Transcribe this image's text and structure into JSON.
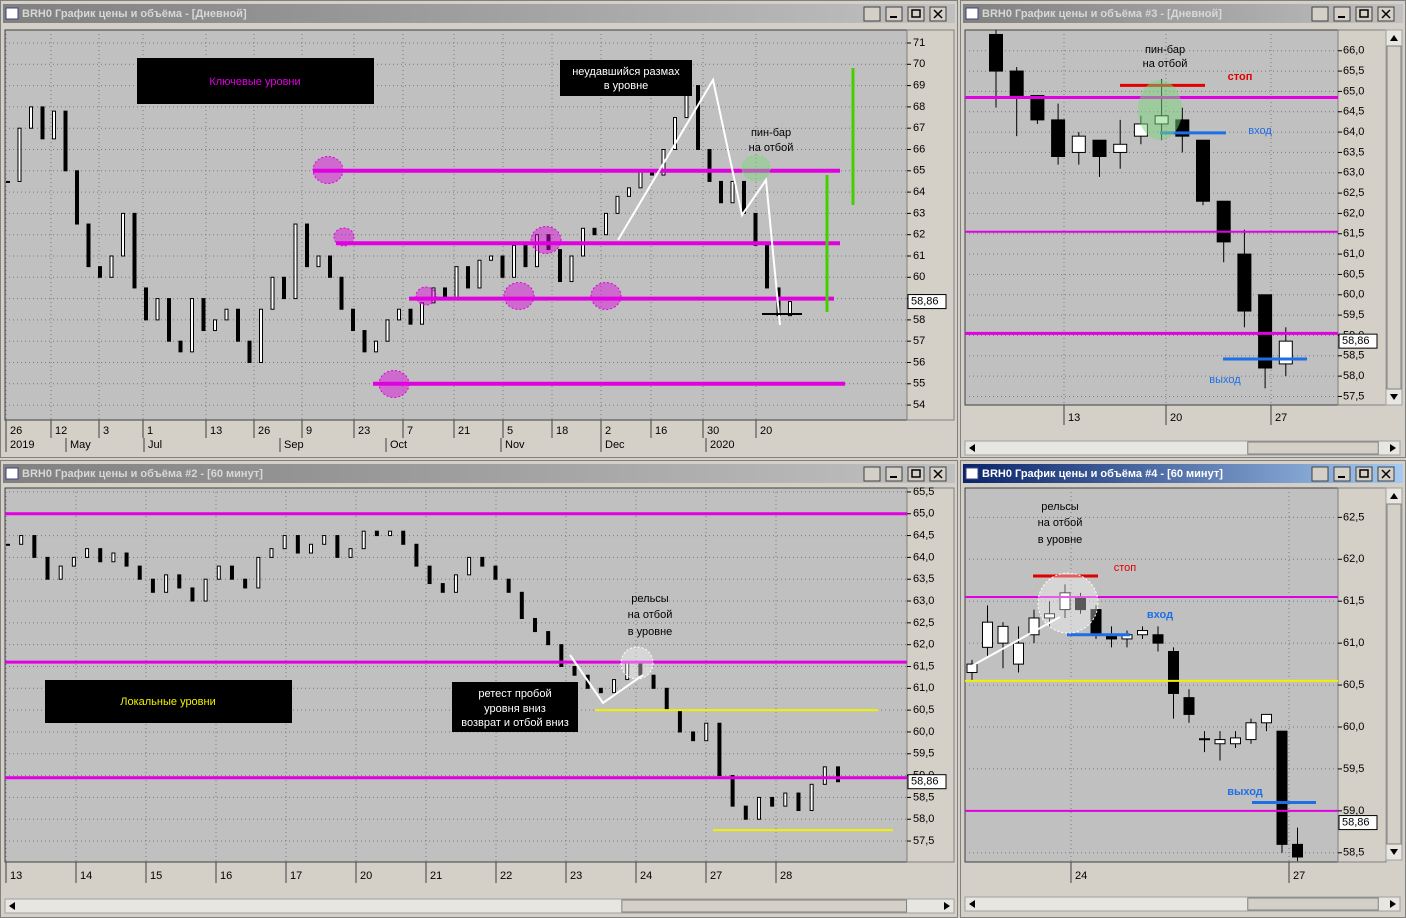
{
  "windows": [
    {
      "title": "BRH0 График цены и объёма - [Дневной]",
      "active": false,
      "chart": {
        "type": "bars",
        "closes": [
          64.5,
          67,
          68,
          66.5,
          67.8,
          65,
          62.5,
          60.5,
          60,
          61,
          63,
          59.5,
          58,
          59,
          57,
          56.5,
          59,
          57.5,
          58,
          58.5,
          57,
          56,
          58.5,
          60,
          59,
          62.5,
          60.5,
          61,
          60,
          58.5,
          57.5,
          56.5,
          57,
          58,
          58.5,
          57.8,
          58.8,
          59.5,
          59,
          60.5,
          59.5,
          60.8,
          61,
          60,
          61.5,
          60.5,
          62,
          61.3,
          59.8,
          61,
          62.3,
          62,
          63,
          63.8,
          64.2,
          65,
          64.8,
          66,
          67.5,
          69,
          66,
          64.5,
          63.5,
          64.5,
          63,
          61.5,
          59.5,
          58.2,
          58.86
        ],
        "ylim": [
          53.3,
          71.61
        ],
        "yticks": [
          71,
          70,
          69,
          68,
          67,
          66,
          65,
          64,
          63,
          62,
          61,
          60,
          59,
          58,
          57,
          56,
          55,
          54
        ],
        "price": {
          "value": 58.86,
          "label": "58,86"
        },
        "levels": [
          {
            "value": 65,
            "color": "#e000e0"
          },
          {
            "value": 61.6,
            "color": "#e000e0"
          },
          {
            "value": 59,
            "color": "#e000e0"
          },
          {
            "value": 55,
            "color": "#e000e0"
          }
        ],
        "x_labels": [
          "26",
          "12",
          "3",
          "1",
          "13",
          "26",
          "9",
          "23",
          "7",
          "21",
          "5",
          "18",
          "2",
          "16",
          "30",
          "20"
        ],
        "x_labels_2": [
          "2019",
          "May",
          "Jul",
          "Sep",
          "Oct",
          "Nov",
          "Dec",
          "2020"
        ],
        "notes": [
          {
            "lines": [
              "Ключевые уровни"
            ]
          },
          {
            "lines": [
              "неудавшийся размах",
              "в уровне"
            ]
          },
          {
            "lines": [
              "пин-бар",
              "на отбой"
            ]
          }
        ]
      }
    },
    {
      "title": "BRH0 График цены и объёма #3 - [Дневной]",
      "active": false,
      "chart": {
        "type": "candlestick",
        "candles": [
          [
            66.4,
            66.6,
            64.6,
            65.5
          ],
          [
            65.5,
            65.6,
            63.9,
            64.9
          ],
          [
            64.9,
            64.9,
            64.2,
            64.3
          ],
          [
            64.3,
            64.7,
            63.2,
            63.4
          ],
          [
            63.5,
            64.0,
            63.2,
            63.9
          ],
          [
            63.8,
            63.8,
            62.9,
            63.4
          ],
          [
            63.5,
            64.3,
            63.1,
            63.7
          ],
          [
            63.9,
            64.4,
            63.7,
            64.2
          ],
          [
            64.2,
            65.3,
            63.8,
            64.4
          ],
          [
            64.3,
            64.6,
            63.5,
            63.9
          ],
          [
            63.8,
            63.8,
            62.2,
            62.3
          ],
          [
            62.3,
            62.3,
            60.8,
            61.3
          ],
          [
            61.0,
            61.6,
            59.2,
            59.6
          ],
          [
            60.0,
            60.0,
            57.7,
            58.2
          ],
          [
            58.3,
            59.2,
            58.0,
            58.86
          ]
        ],
        "ylim": [
          57.29,
          66.51
        ],
        "yticks": [
          {
            "value": 66,
            "label": "66,0"
          },
          {
            "value": 65.5,
            "label": "65,5"
          },
          {
            "value": 65,
            "label": "65,0"
          },
          {
            "value": 64.5,
            "label": "64,5"
          },
          {
            "value": 64,
            "label": "64,0"
          },
          {
            "value": 63.5,
            "label": "63,5"
          },
          {
            "value": 63,
            "label": "63,0"
          },
          {
            "value": 62.5,
            "label": "62,5"
          },
          {
            "value": 62,
            "label": "62,0"
          },
          {
            "value": 61.5,
            "label": "61,5"
          },
          {
            "value": 61,
            "label": "61,0"
          },
          {
            "value": 60.5,
            "label": "60,5"
          },
          {
            "value": 60,
            "label": "60,0"
          },
          {
            "value": 59.5,
            "label": "59,5"
          },
          {
            "value": 59,
            "label": "59,0"
          },
          {
            "value": 58.5,
            "label": "58,5"
          },
          {
            "value": 58,
            "label": "58,0"
          },
          {
            "value": 57.5,
            "label": "57,5"
          }
        ],
        "price": {
          "value": 58.86,
          "label": "58,86"
        },
        "levels": [
          {
            "value": 64.85,
            "color": "#e000e0"
          },
          {
            "value": 61.55,
            "color": "#e000e0"
          },
          {
            "value": 59.05,
            "color": "#e000e0"
          },
          {
            "value": 65.15,
            "color": "#e00000"
          },
          {
            "value": 63.98,
            "color": "#1e6ee6"
          },
          {
            "value": 58.42,
            "color": "#1e6ee6"
          }
        ],
        "x_labels": [
          "13",
          "20",
          "27"
        ],
        "notes": [
          {
            "lines": [
              "пин-бар",
              "на отбой"
            ]
          },
          {
            "lines": [
              "стоп"
            ]
          },
          {
            "lines": [
              "вход"
            ]
          },
          {
            "lines": [
              "выход"
            ]
          }
        ]
      }
    },
    {
      "title": "BRH0 График цены и объёма #2 - [60 минут]",
      "active": false,
      "chart": {
        "type": "bars",
        "closes": [
          64.3,
          64.5,
          64,
          63.5,
          63.8,
          64,
          64.2,
          63.9,
          64.1,
          63.8,
          63.5,
          63.2,
          63.6,
          63.3,
          63,
          63.5,
          63.8,
          63.5,
          63.3,
          64,
          64.2,
          64.5,
          64.1,
          64.3,
          64.5,
          64,
          64.2,
          64.6,
          64.5,
          64.6,
          64.3,
          63.8,
          63.4,
          63.2,
          63.6,
          64,
          63.8,
          63.5,
          63.2,
          62.6,
          62.3,
          62,
          61.5,
          61.3,
          61,
          60.9,
          61.2,
          61.6,
          61.3,
          61,
          60.5,
          60,
          59.8,
          60.2,
          59,
          58.3,
          58,
          58.5,
          58.3,
          58.6,
          58.2,
          58.8,
          59.2,
          58.86
        ],
        "ylim": [
          57.02,
          65.59
        ],
        "yticks": [
          {
            "value": 65.5,
            "label": "65,5"
          },
          {
            "value": 65,
            "label": "65,0"
          },
          {
            "value": 64.5,
            "label": "64,5"
          },
          {
            "value": 64,
            "label": "64,0"
          },
          {
            "value": 63.5,
            "label": "63,5"
          },
          {
            "value": 63,
            "label": "63,0"
          },
          {
            "value": 62.5,
            "label": "62,5"
          },
          {
            "value": 62,
            "label": "62,0"
          },
          {
            "value": 61.5,
            "label": "61,5"
          },
          {
            "value": 61,
            "label": "61,0"
          },
          {
            "value": 60.5,
            "label": "60,5"
          },
          {
            "value": 60,
            "label": "60,0"
          },
          {
            "value": 59.5,
            "label": "59,5"
          },
          {
            "value": 59,
            "label": "59,0"
          },
          {
            "value": 58.5,
            "label": "58,5"
          },
          {
            "value": 58,
            "label": "58,0"
          },
          {
            "value": 57.5,
            "label": "57,5"
          }
        ],
        "price": {
          "value": 58.86,
          "label": "58,86"
        },
        "levels": [
          {
            "value": 65,
            "color": "#e000e0"
          },
          {
            "value": 61.6,
            "color": "#e000e0"
          },
          {
            "value": 58.95,
            "color": "#e000e0"
          },
          {
            "value": 60.5,
            "color": "#f0f000"
          },
          {
            "value": 57.75,
            "color": "#f0f000"
          }
        ],
        "x_labels": [
          "13",
          "14",
          "15",
          "16",
          "17",
          "20",
          "21",
          "22",
          "23",
          "24",
          "27",
          "28"
        ],
        "notes": [
          {
            "lines": [
              "Локальные уровни"
            ]
          },
          {
            "lines": [
              "рельсы",
              "на отбой",
              "в уровне"
            ]
          },
          {
            "lines": [
              "ретест пробой",
              "уровня вниз",
              "возврат и отбой вниз"
            ]
          }
        ]
      }
    },
    {
      "title": "BRH0 График цены и объёма #4 - [60 минут]",
      "active": true,
      "chart": {
        "type": "candlestick",
        "candles": [
          [
            60.65,
            60.8,
            60.55,
            60.75
          ],
          [
            60.95,
            61.45,
            60.85,
            61.25
          ],
          [
            61.0,
            61.25,
            60.7,
            61.2
          ],
          [
            60.75,
            61.2,
            60.65,
            61.0
          ],
          [
            61.1,
            61.4,
            61.0,
            61.3
          ],
          [
            61.3,
            61.5,
            61.2,
            61.35
          ],
          [
            61.4,
            61.7,
            61.3,
            61.6
          ],
          [
            61.55,
            61.6,
            61.35,
            61.4
          ],
          [
            61.4,
            61.45,
            61.05,
            61.1
          ],
          [
            61.1,
            61.2,
            60.95,
            61.05
          ],
          [
            61.05,
            61.15,
            60.95,
            61.1
          ],
          [
            61.1,
            61.2,
            61.05,
            61.15
          ],
          [
            61.1,
            61.2,
            60.9,
            61.0
          ],
          [
            60.9,
            60.95,
            60.1,
            60.4
          ],
          [
            60.35,
            60.45,
            60.05,
            60.15
          ],
          [
            59.85,
            59.95,
            59.7,
            59.86
          ],
          [
            59.8,
            59.95,
            59.6,
            59.85
          ],
          [
            59.8,
            59.95,
            59.75,
            59.87
          ],
          [
            59.85,
            60.1,
            59.8,
            60.05
          ],
          [
            60.05,
            60.15,
            59.95,
            60.15
          ],
          [
            59.95,
            59.95,
            58.5,
            58.6
          ],
          [
            58.6,
            58.8,
            58.4,
            58.45
          ]
        ],
        "ylim": [
          58.39,
          62.85
        ],
        "yticks": [
          {
            "value": 62.5,
            "label": "62,5"
          },
          {
            "value": 62,
            "label": "62,0"
          },
          {
            "value": 61.5,
            "label": "61,5"
          },
          {
            "value": 61,
            "label": "61,0"
          },
          {
            "value": 60.5,
            "label": "60,5"
          },
          {
            "value": 60,
            "label": "60,0"
          },
          {
            "value": 59.5,
            "label": "59,5"
          },
          {
            "value": 59,
            "label": "59,0"
          },
          {
            "value": 58.5,
            "label": "58,5"
          }
        ],
        "price": {
          "value": 58.86,
          "label": "58,86"
        },
        "levels": [
          {
            "value": 61.55,
            "color": "#e000e0"
          },
          {
            "value": 59.0,
            "color": "#e000e0"
          },
          {
            "value": 60.55,
            "color": "#f0f000"
          },
          {
            "value": 61.8,
            "color": "#e00000"
          },
          {
            "value": 61.1,
            "color": "#1e6ee6"
          },
          {
            "value": 59.1,
            "color": "#1e6ee6"
          }
        ],
        "x_labels": [
          "24",
          "27"
        ],
        "notes": [
          {
            "lines": [
              "рельсы",
              "на отбой",
              "в уровне"
            ]
          },
          {
            "lines": [
              "стоп"
            ]
          },
          {
            "lines": [
              "вход"
            ]
          },
          {
            "lines": [
              "выход"
            ]
          }
        ]
      }
    }
  ]
}
